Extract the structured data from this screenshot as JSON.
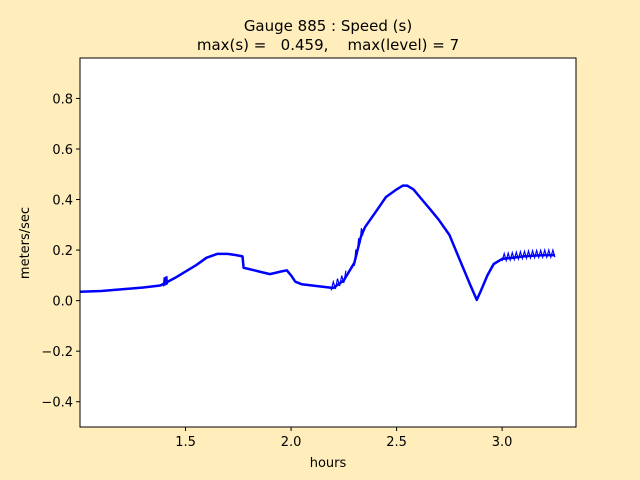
{
  "chart_data": {
    "type": "line",
    "title_line1": "Gauge 885 : Speed (s)",
    "title_line2": "max(s) =   0.459,    max(level) = 7",
    "xlabel": "hours",
    "ylabel": "meters/sec",
    "xlim": [
      1.0,
      3.35
    ],
    "ylim": [
      -0.5,
      0.96
    ],
    "xticks": [
      1.5,
      2.0,
      2.5,
      3.0
    ],
    "xtick_labels": [
      "1.5",
      "2.0",
      "2.5",
      "3.0"
    ],
    "yticks": [
      -0.4,
      -0.2,
      0.0,
      0.2,
      0.4,
      0.6,
      0.8
    ],
    "ytick_labels": [
      "−0.4",
      "−0.2",
      "0.0",
      "0.2",
      "0.4",
      "0.6",
      "0.8"
    ],
    "grid": false,
    "line_color": "#0000ff",
    "series": [
      {
        "x": [
          1.0,
          1.1,
          1.2,
          1.3,
          1.38,
          1.41,
          1.45,
          1.5,
          1.55,
          1.6,
          1.65,
          1.7,
          1.74,
          1.77,
          1.775,
          1.8,
          1.85,
          1.9,
          1.95,
          1.98,
          2.0,
          2.02,
          2.05,
          2.1,
          2.15,
          2.2,
          2.25,
          2.3,
          2.33,
          2.35,
          2.4,
          2.45,
          2.5,
          2.53,
          2.55,
          2.58,
          2.62,
          2.66,
          2.7,
          2.75,
          2.8,
          2.85,
          2.88,
          2.9,
          2.93,
          2.96,
          3.0,
          3.05,
          3.1,
          3.15,
          3.2,
          3.25
        ],
        "y": [
          0.035,
          0.038,
          0.045,
          0.052,
          0.06,
          0.072,
          0.09,
          0.115,
          0.14,
          0.17,
          0.185,
          0.185,
          0.18,
          0.175,
          0.13,
          0.125,
          0.115,
          0.105,
          0.115,
          0.12,
          0.1,
          0.075,
          0.065,
          0.06,
          0.055,
          0.05,
          0.08,
          0.15,
          0.25,
          0.29,
          0.35,
          0.41,
          0.44,
          0.455,
          0.455,
          0.44,
          0.4,
          0.36,
          0.32,
          0.26,
          0.16,
          0.06,
          0.003,
          0.04,
          0.1,
          0.145,
          0.165,
          0.17,
          0.175,
          0.178,
          0.18,
          0.18
        ]
      }
    ],
    "noise_bands": [
      {
        "x0": 1.395,
        "x1": 1.415,
        "amplitude": 0.025
      },
      {
        "x0": 2.19,
        "x1": 2.26,
        "amplitude": 0.025
      },
      {
        "x0": 2.3,
        "x1": 2.34,
        "amplitude": 0.03
      },
      {
        "x0": 3.0,
        "x1": 3.25,
        "amplitude": 0.02
      }
    ]
  }
}
